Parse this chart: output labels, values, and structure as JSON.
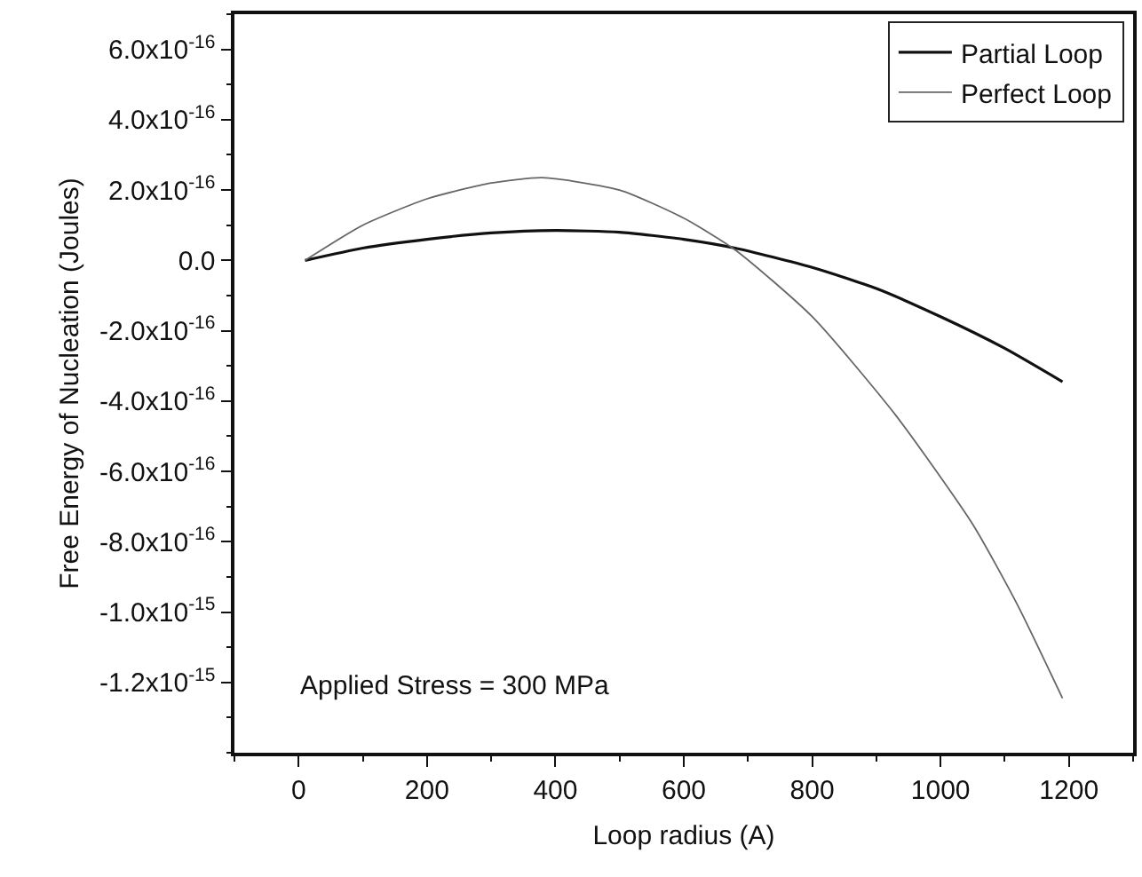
{
  "chart_data": {
    "type": "line",
    "xlabel": "Loop radius (A)",
    "ylabel": "Free Energy of Nucleation (Joules)",
    "x": [
      10,
      100,
      200,
      300,
      400,
      500,
      600,
      680,
      800,
      900,
      1000,
      1100,
      1190
    ],
    "series": [
      {
        "name": "Partial Loop",
        "color": "#111111",
        "values": [
          0,
          3.5e-17,
          6e-17,
          7.8e-17,
          8.5e-17,
          8e-17,
          6e-17,
          3.5e-17,
          -2e-17,
          -8e-17,
          -1.6e-16,
          -2.5e-16,
          -3.45e-16
        ]
      },
      {
        "name": "Perfect Loop",
        "color": "#666666",
        "x": [
          10,
          100,
          200,
          300,
          380,
          500,
          600,
          680,
          800,
          930,
          1050,
          1120,
          1190
        ],
        "values": [
          0,
          1e-16,
          1.75e-16,
          2.2e-16,
          2.35e-16,
          2e-16,
          1.2e-16,
          3e-17,
          -1.6e-16,
          -4.4e-16,
          -7.5e-16,
          -9.8e-16,
          -1.245e-15
        ]
      }
    ],
    "xlim": [
      -100,
      1300
    ],
    "xticks": [
      0,
      200,
      400,
      600,
      800,
      1000,
      1200
    ],
    "ylim": [
      -1.4e-15,
      7e-16
    ],
    "yticks": [
      {
        "value": 6e-16,
        "label": "6.0x10$^{-16}$"
      },
      {
        "value": 4e-16,
        "label": "4.0x10$^{-16}$"
      },
      {
        "value": 2e-16,
        "label": "2.0x10$^{-16}$"
      },
      {
        "value": 0,
        "label": "0.0"
      },
      {
        "value": -2e-16,
        "label": "-2.0x10$^{-16}$"
      },
      {
        "value": -4e-16,
        "label": "-4.0x10$^{-16}$"
      },
      {
        "value": -6e-16,
        "label": "-6.0x10$^{-16}$"
      },
      {
        "value": -8e-16,
        "label": "-8.0x10$^{-16}$"
      },
      {
        "value": -1e-15,
        "label": "-1.0x10$^{-15}$"
      },
      {
        "value": -1.2e-15,
        "label": "-1.2x10$^{-15}$"
      }
    ],
    "annotations": [
      "Applied Stress = 300 MPa"
    ],
    "legend": "top right",
    "grid": false,
    "marker": "none",
    "line_style": "solid"
  }
}
